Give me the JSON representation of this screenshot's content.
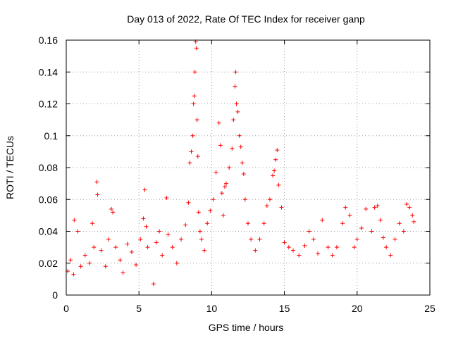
{
  "chart_data": {
    "type": "scatter",
    "title": "Day 013 of 2022, Rate Of TEC Index for receiver ganp",
    "xlabel": "GPS time / hours",
    "ylabel": "ROTI / TECUs",
    "xlim": [
      0,
      25
    ],
    "ylim": [
      0,
      0.16
    ],
    "xticks": [
      0,
      5,
      10,
      15,
      20,
      25
    ],
    "yticks": [
      0,
      0.02,
      0.04,
      0.06,
      0.08,
      0.1,
      0.12,
      0.14,
      0.16
    ],
    "xtick_labels": [
      "0",
      "5",
      "10",
      "15",
      "20",
      "25"
    ],
    "ytick_labels": [
      "0",
      "0.02",
      "0.04",
      "0.06",
      "0.08",
      "0.1",
      "0.12",
      "0.14",
      "0.16"
    ],
    "grid": true,
    "marker": "+",
    "color": "#ff0000",
    "series": [
      {
        "name": "ROTI",
        "x": [
          0.1,
          0.3,
          0.5,
          0.55,
          0.8,
          1.0,
          1.3,
          1.6,
          1.8,
          1.9,
          2.1,
          2.15,
          2.4,
          2.7,
          2.9,
          3.1,
          3.2,
          3.4,
          3.7,
          3.9,
          4.2,
          4.5,
          4.8,
          5.1,
          5.3,
          5.4,
          5.5,
          5.6,
          6.0,
          6.2,
          6.4,
          6.6,
          6.9,
          7.0,
          7.3,
          7.6,
          7.9,
          8.2,
          8.4,
          8.5,
          8.6,
          8.7,
          8.75,
          8.8,
          8.85,
          8.9,
          8.95,
          9.0,
          9.05,
          9.1,
          9.2,
          9.3,
          9.5,
          9.7,
          9.9,
          10.1,
          10.3,
          10.5,
          10.6,
          10.7,
          10.8,
          10.9,
          11.0,
          11.2,
          11.4,
          11.5,
          11.6,
          11.65,
          11.7,
          11.8,
          11.9,
          12.0,
          12.1,
          12.2,
          12.3,
          12.5,
          12.7,
          13.0,
          13.3,
          13.6,
          13.8,
          14.0,
          14.2,
          14.3,
          14.4,
          14.5,
          14.6,
          14.8,
          15.0,
          15.3,
          15.6,
          16.0,
          16.4,
          16.7,
          17.0,
          17.3,
          17.6,
          18.0,
          18.3,
          18.6,
          19.0,
          19.2,
          19.5,
          19.8,
          20.0,
          20.3,
          20.6,
          21.0,
          21.2,
          21.4,
          21.6,
          21.8,
          22.0,
          22.3,
          22.6,
          22.9,
          23.2,
          23.4,
          23.6,
          23.8,
          23.9
        ],
        "y": [
          0.015,
          0.022,
          0.013,
          0.047,
          0.04,
          0.018,
          0.025,
          0.02,
          0.045,
          0.03,
          0.071,
          0.063,
          0.028,
          0.018,
          0.035,
          0.054,
          0.052,
          0.03,
          0.022,
          0.014,
          0.032,
          0.027,
          0.019,
          0.035,
          0.048,
          0.066,
          0.043,
          0.03,
          0.007,
          0.033,
          0.04,
          0.025,
          0.061,
          0.038,
          0.03,
          0.02,
          0.035,
          0.044,
          0.058,
          0.083,
          0.09,
          0.1,
          0.12,
          0.125,
          0.14,
          0.159,
          0.155,
          0.11,
          0.087,
          0.052,
          0.04,
          0.035,
          0.028,
          0.045,
          0.053,
          0.06,
          0.077,
          0.108,
          0.094,
          0.064,
          0.05,
          0.068,
          0.07,
          0.08,
          0.092,
          0.11,
          0.131,
          0.14,
          0.12,
          0.115,
          0.1,
          0.093,
          0.083,
          0.076,
          0.06,
          0.045,
          0.035,
          0.028,
          0.035,
          0.045,
          0.056,
          0.06,
          0.075,
          0.078,
          0.085,
          0.091,
          0.069,
          0.055,
          0.033,
          0.03,
          0.028,
          0.025,
          0.031,
          0.04,
          0.035,
          0.026,
          0.047,
          0.03,
          0.025,
          0.03,
          0.045,
          0.055,
          0.05,
          0.03,
          0.035,
          0.042,
          0.054,
          0.04,
          0.055,
          0.056,
          0.047,
          0.036,
          0.03,
          0.025,
          0.035,
          0.045,
          0.04,
          0.057,
          0.055,
          0.05,
          0.046
        ]
      }
    ]
  }
}
